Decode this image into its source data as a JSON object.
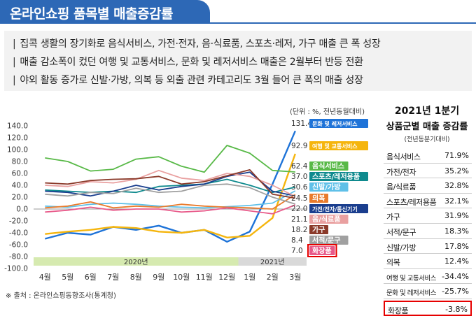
{
  "header": {
    "title": "온라인쇼핑 품목별 매출증감률"
  },
  "summary": [
    "집콕 생활의 장기화로 음식서비스, 가전·전자, 음·식료품, 스포츠·레저, 가구 매출 큰 폭 성장",
    "매출 감소폭이 컸던 여행 및 교통서비스, 문화 및 레저서비스 매출은 2월부터 반등 전환",
    "야외 활동 증가로 신발·가방, 의복 등 외출 관련 카테고리도 3월 들어 큰 폭의 매출 성장"
  ],
  "unit": "(단위 : %, 전년동월대비)",
  "chart_data": {
    "type": "line",
    "x": [
      "4월",
      "5월",
      "6월",
      "7월",
      "8월",
      "9월",
      "10월",
      "11월",
      "12월",
      "1월",
      "2월",
      "3월"
    ],
    "year_bands": [
      "2020년",
      "2021년"
    ],
    "ylim": [
      -100,
      140
    ],
    "yticks": [
      "140.0",
      "120.0",
      "100.0",
      "80.0",
      "60.0",
      "40.0",
      "20.0",
      "0.0",
      "-20.0",
      "-40.0",
      "-60.0",
      "-80.0",
      "-100.0"
    ],
    "series": [
      {
        "name": "문화 및 레저서비스",
        "color": "#1e73d8",
        "values": [
          -50,
          -40,
          -43,
          -30,
          -35,
          -28,
          -40,
          -35,
          -55,
          -38,
          42,
          131.4
        ],
        "end_label": "131.4"
      },
      {
        "name": "여행 및 교통서비스",
        "color": "#f5b50d",
        "values": [
          -42,
          -38,
          -35,
          -30,
          -32,
          -38,
          -40,
          -35,
          -48,
          -45,
          -15,
          92.9
        ],
        "end_label": "92.9"
      },
      {
        "name": "음식서비스",
        "color": "#58b947",
        "values": [
          86,
          80,
          64,
          67,
          84,
          88,
          72,
          62,
          107,
          94,
          65,
          62.4
        ],
        "end_label": "62.4"
      },
      {
        "name": "스포츠/레저용품",
        "color": "#0f8a8e",
        "values": [
          32,
          30,
          28,
          30,
          28,
          38,
          40,
          42,
          50,
          40,
          28,
          37.0
        ],
        "end_label": "37.0"
      },
      {
        "name": "신발/가방",
        "color": "#5fc0e8",
        "values": [
          5,
          3,
          8,
          10,
          8,
          5,
          3,
          2,
          4,
          6,
          10,
          30.6
        ],
        "end_label": "30.6"
      },
      {
        "name": "의복",
        "color": "#e97b2c",
        "values": [
          2,
          5,
          12,
          2,
          5,
          3,
          8,
          5,
          3,
          2,
          0,
          24.5
        ],
        "end_label": "24.5"
      },
      {
        "name": "가전/전자/통신기기",
        "color": "#1a3e8e",
        "values": [
          30,
          28,
          22,
          30,
          40,
          32,
          38,
          42,
          55,
          62,
          30,
          22.0
        ],
        "end_label": "22.0"
      },
      {
        "name": "음/식료품",
        "color": "#e9a0a0",
        "values": [
          40,
          38,
          46,
          44,
          50,
          65,
          52,
          48,
          60,
          55,
          40,
          21.1
        ],
        "end_label": "21.1"
      },
      {
        "name": "가구",
        "color": "#8b3a2a",
        "values": [
          44,
          42,
          48,
          50,
          51,
          55,
          42,
          46,
          56,
          66,
          25,
          18.2
        ],
        "end_label": "18.2"
      },
      {
        "name": "서적/문구",
        "color": "#a0a0a0",
        "values": [
          25,
          22,
          28,
          26,
          35,
          28,
          30,
          40,
          42,
          36,
          20,
          8.4
        ],
        "end_label": "8.4"
      },
      {
        "name": "화장품",
        "color": "#e85a8a",
        "values": [
          -5,
          -2,
          3,
          -2,
          0,
          0,
          -5,
          -3,
          2,
          -3,
          -8,
          7.0
        ],
        "end_label": "7.0"
      }
    ]
  },
  "side": {
    "title1": "2021년 1분기",
    "title2": "상품군별 매출 증감률",
    "sub": "(전년동분기대비)",
    "rows": [
      {
        "name": "음식서비스",
        "value": "71.9%"
      },
      {
        "name": "가전/전자",
        "value": "35.2%"
      },
      {
        "name": "음/식료품",
        "value": "32.8%"
      },
      {
        "name": "스포츠/레저용품",
        "value": "32.1%"
      },
      {
        "name": "가구",
        "value": "31.9%"
      },
      {
        "name": "서적/문구",
        "value": "18.3%"
      },
      {
        "name": "신발/가방",
        "value": "17.8%"
      },
      {
        "name": "의복",
        "value": "12.4%"
      },
      {
        "name": "여행 및 교통서비스",
        "value": "-34.4%"
      },
      {
        "name": "문화 및 레저서비스",
        "value": "-25.7%"
      },
      {
        "name": "화장품",
        "value": "-3.8%"
      }
    ]
  },
  "source": "※ 출처 : 온라인쇼핑동향조사(통계청)"
}
